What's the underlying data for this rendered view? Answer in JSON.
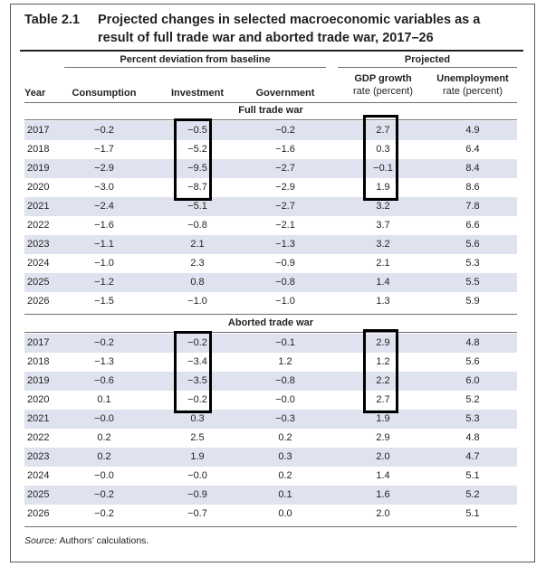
{
  "table": {
    "number": "Table 2.1",
    "title": "Projected changes in selected macroeconomic variables as a result of full trade war and aborted trade war, 2017–26",
    "header": {
      "group_baseline": "Percent deviation from baseline",
      "group_projected": "Projected",
      "year": "Year",
      "consumption": "Consumption",
      "investment": "Investment",
      "government": "Government",
      "gdp_line1": "GDP growth",
      "gdp_line2": "rate (percent)",
      "unemp_line1": "Unemployment",
      "unemp_line2": "rate (percent)"
    },
    "sections": [
      {
        "title": "Full trade war",
        "rows": [
          [
            "2017",
            "−0.2",
            "−0.5",
            "−0.2",
            "2.7",
            "4.9"
          ],
          [
            "2018",
            "−1.7",
            "−5.2",
            "−1.6",
            "0.3",
            "6.4"
          ],
          [
            "2019",
            "−2.9",
            "−9.5",
            "−2.7",
            "−0.1",
            "8.4"
          ],
          [
            "2020",
            "−3.0",
            "−8.7",
            "−2.9",
            "1.9",
            "8.6"
          ],
          [
            "2021",
            "−2.4",
            "−5.1",
            "−2.7",
            "3.2",
            "7.8"
          ],
          [
            "2022",
            "−1.6",
            "−0.8",
            "−2.1",
            "3.7",
            "6.6"
          ],
          [
            "2023",
            "−1.1",
            "2.1",
            "−1.3",
            "3.2",
            "5.6"
          ],
          [
            "2024",
            "−1.0",
            "2.3",
            "−0.9",
            "2.1",
            "5.3"
          ],
          [
            "2025",
            "−1.2",
            "0.8",
            "−0.8",
            "1.4",
            "5.5"
          ],
          [
            "2026",
            "−1.5",
            "−1.0",
            "−1.0",
            "1.3",
            "5.9"
          ]
        ]
      },
      {
        "title": "Aborted trade war",
        "rows": [
          [
            "2017",
            "−0.2",
            "−0.2",
            "−0.1",
            "2.9",
            "4.8"
          ],
          [
            "2018",
            "−1.3",
            "−3.4",
            "1.2",
            "1.2",
            "5.6"
          ],
          [
            "2019",
            "−0.6",
            "−3.5",
            "−0.8",
            "2.2",
            "6.0"
          ],
          [
            "2020",
            "0.1",
            "−0.2",
            "−0.0",
            "2.7",
            "5.2"
          ],
          [
            "2021",
            "−0.0",
            "0.3",
            "−0.3",
            "1.9",
            "5.3"
          ],
          [
            "2022",
            "0.2",
            "2.5",
            "0.2",
            "2.9",
            "4.8"
          ],
          [
            "2023",
            "0.2",
            "1.9",
            "0.3",
            "2.0",
            "4.7"
          ],
          [
            "2024",
            "−0.0",
            "−0.0",
            "0.2",
            "1.4",
            "5.1"
          ],
          [
            "2025",
            "−0.2",
            "−0.9",
            "0.1",
            "1.6",
            "5.2"
          ],
          [
            "2026",
            "−0.2",
            "−0.7",
            "0.0",
            "2.0",
            "5.1"
          ]
        ]
      }
    ],
    "source_label": "Source:",
    "source_text": " Authors’ calculations.",
    "colors": {
      "row_shade": "#dfe3ef",
      "text": "#231f20",
      "highlight_box": "#000000"
    }
  }
}
